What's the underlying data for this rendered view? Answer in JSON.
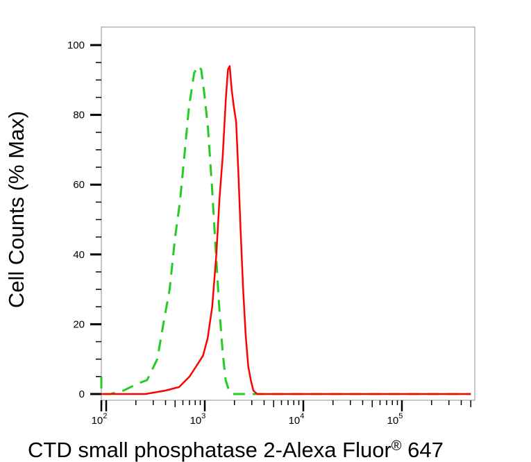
{
  "chart_data": {
    "type": "line",
    "xlabel": "CTD small phosphatase 2-Alexa Fluor",
    "xlabel_sup": "®",
    "xlabel_suffix": " 647",
    "ylabel": "Cell Counts (% Max)",
    "x_scale": "log",
    "x_tick_labels": [
      {
        "base": "10",
        "exp": "2",
        "value": 100
      },
      {
        "base": "10",
        "exp": "3",
        "value": 1000
      },
      {
        "base": "10",
        "exp": "4",
        "value": 10000
      },
      {
        "base": "10",
        "exp": "5",
        "value": 100000
      }
    ],
    "y_ticks": [
      0,
      20,
      40,
      60,
      80,
      100
    ],
    "y_tick_labels": [
      "0",
      "20",
      "40",
      "60",
      "80",
      "100"
    ],
    "ylim": [
      0,
      105
    ],
    "grid": false,
    "series": [
      {
        "style": "dashed",
        "color": "#22cc22",
        "points": [
          [
            55,
            5
          ],
          [
            58,
            1
          ],
          [
            70,
            0
          ],
          [
            110,
            0
          ],
          [
            150,
            1
          ],
          [
            210,
            3
          ],
          [
            260,
            4
          ],
          [
            330,
            10
          ],
          [
            380,
            20
          ],
          [
            440,
            30
          ],
          [
            500,
            45
          ],
          [
            560,
            55
          ],
          [
            620,
            68
          ],
          [
            690,
            82
          ],
          [
            780,
            92
          ],
          [
            860,
            94
          ],
          [
            920,
            93
          ],
          [
            990,
            86
          ],
          [
            1080,
            76
          ],
          [
            1180,
            60
          ],
          [
            1300,
            40
          ],
          [
            1400,
            25
          ],
          [
            1520,
            12
          ],
          [
            1630,
            4
          ],
          [
            1760,
            1
          ],
          [
            1900,
            0
          ],
          [
            2500,
            0
          ],
          [
            10000,
            0
          ],
          [
            100000,
            0
          ],
          [
            500000,
            0
          ]
        ]
      },
      {
        "style": "solid",
        "color": "#ff0000",
        "points": [
          [
            55,
            0
          ],
          [
            150,
            0
          ],
          [
            250,
            0
          ],
          [
            400,
            1
          ],
          [
            550,
            2
          ],
          [
            700,
            5
          ],
          [
            820,
            8
          ],
          [
            960,
            11
          ],
          [
            1070,
            16
          ],
          [
            1190,
            25
          ],
          [
            1310,
            40
          ],
          [
            1410,
            56
          ],
          [
            1520,
            68
          ],
          [
            1640,
            85
          ],
          [
            1720,
            93
          ],
          [
            1790,
            94
          ],
          [
            1880,
            87
          ],
          [
            1980,
            82
          ],
          [
            2080,
            78
          ],
          [
            2190,
            64
          ],
          [
            2310,
            47
          ],
          [
            2450,
            30
          ],
          [
            2600,
            17
          ],
          [
            2760,
            8
          ],
          [
            2930,
            4
          ],
          [
            3110,
            1
          ],
          [
            3400,
            0
          ],
          [
            5000,
            0
          ],
          [
            10000,
            0
          ],
          [
            100000,
            0
          ],
          [
            500000,
            0
          ]
        ]
      }
    ]
  }
}
